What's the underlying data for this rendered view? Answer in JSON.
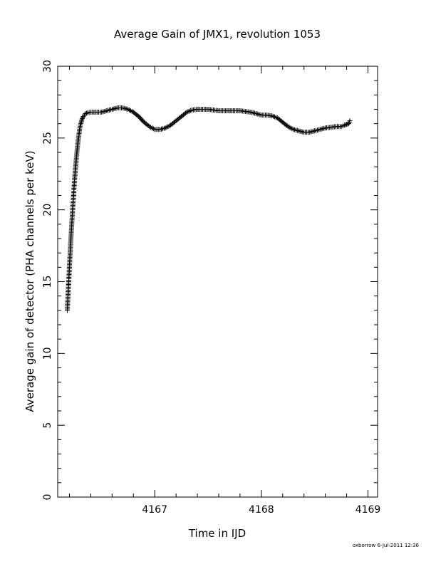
{
  "chart_data": {
    "type": "scatter",
    "title": "Average Gain of JMX1, revolution 1053",
    "xlabel": "Time in IJD",
    "ylabel": "Average gain of detector (PHA channels per keV)",
    "footer": "oxborrow  6-Jul-2011 12:36",
    "xlim": [
      4166.09,
      4169.09
    ],
    "ylim": [
      0,
      30
    ],
    "x_ticks": [
      4167,
      4168,
      4169
    ],
    "y_ticks": [
      0,
      5,
      10,
      15,
      20,
      25,
      30
    ],
    "x_tick_labels": [
      "4167",
      "4168",
      "4169"
    ],
    "y_tick_labels": [
      "0",
      "5",
      "10",
      "15",
      "20",
      "25",
      "30"
    ],
    "grid": false,
    "marker": "+",
    "color": "#000000",
    "series": [
      {
        "x": [
          4166.18,
          4166.19,
          4166.2,
          4166.21,
          4166.22,
          4166.23,
          4166.24,
          4166.25,
          4166.26,
          4166.27,
          4166.28,
          4166.29,
          4166.3,
          4166.31,
          4166.32,
          4166.33,
          4166.34,
          4166.35,
          4166.37,
          4166.4,
          4166.45,
          4166.5,
          4166.55,
          4166.6,
          4166.65,
          4166.7,
          4166.75,
          4166.8,
          4166.85,
          4166.9,
          4166.95,
          4167.0,
          4167.05,
          4167.1,
          4167.15,
          4167.2,
          4167.25,
          4167.3,
          4167.35,
          4167.4,
          4167.45,
          4167.5,
          4167.55,
          4167.6,
          4167.65,
          4167.7,
          4167.75,
          4167.8,
          4167.85,
          4167.9,
          4167.95,
          4168.0,
          4168.05,
          4168.1,
          4168.15,
          4168.2,
          4168.25,
          4168.3,
          4168.35,
          4168.4,
          4168.45,
          4168.5,
          4168.55,
          4168.6,
          4168.65,
          4168.7,
          4168.75,
          4168.78,
          4168.8,
          4168.82,
          4168.83
        ],
        "y": [
          13.0,
          14.5,
          16.0,
          17.5,
          18.8,
          20.0,
          21.2,
          22.3,
          23.2,
          24.0,
          24.7,
          25.3,
          25.8,
          26.1,
          26.35,
          26.5,
          26.6,
          26.7,
          26.75,
          26.8,
          26.8,
          26.8,
          26.9,
          27.0,
          27.1,
          27.1,
          27.0,
          26.8,
          26.5,
          26.1,
          25.8,
          25.6,
          25.6,
          25.7,
          25.9,
          26.2,
          26.5,
          26.8,
          26.95,
          27.0,
          27.0,
          27.0,
          26.95,
          26.9,
          26.9,
          26.9,
          26.9,
          26.9,
          26.85,
          26.8,
          26.7,
          26.6,
          26.6,
          26.55,
          26.4,
          26.1,
          25.8,
          25.6,
          25.5,
          25.4,
          25.4,
          25.5,
          25.6,
          25.7,
          25.75,
          25.8,
          25.8,
          25.9,
          25.95,
          26.0,
          26.2
        ]
      }
    ]
  }
}
